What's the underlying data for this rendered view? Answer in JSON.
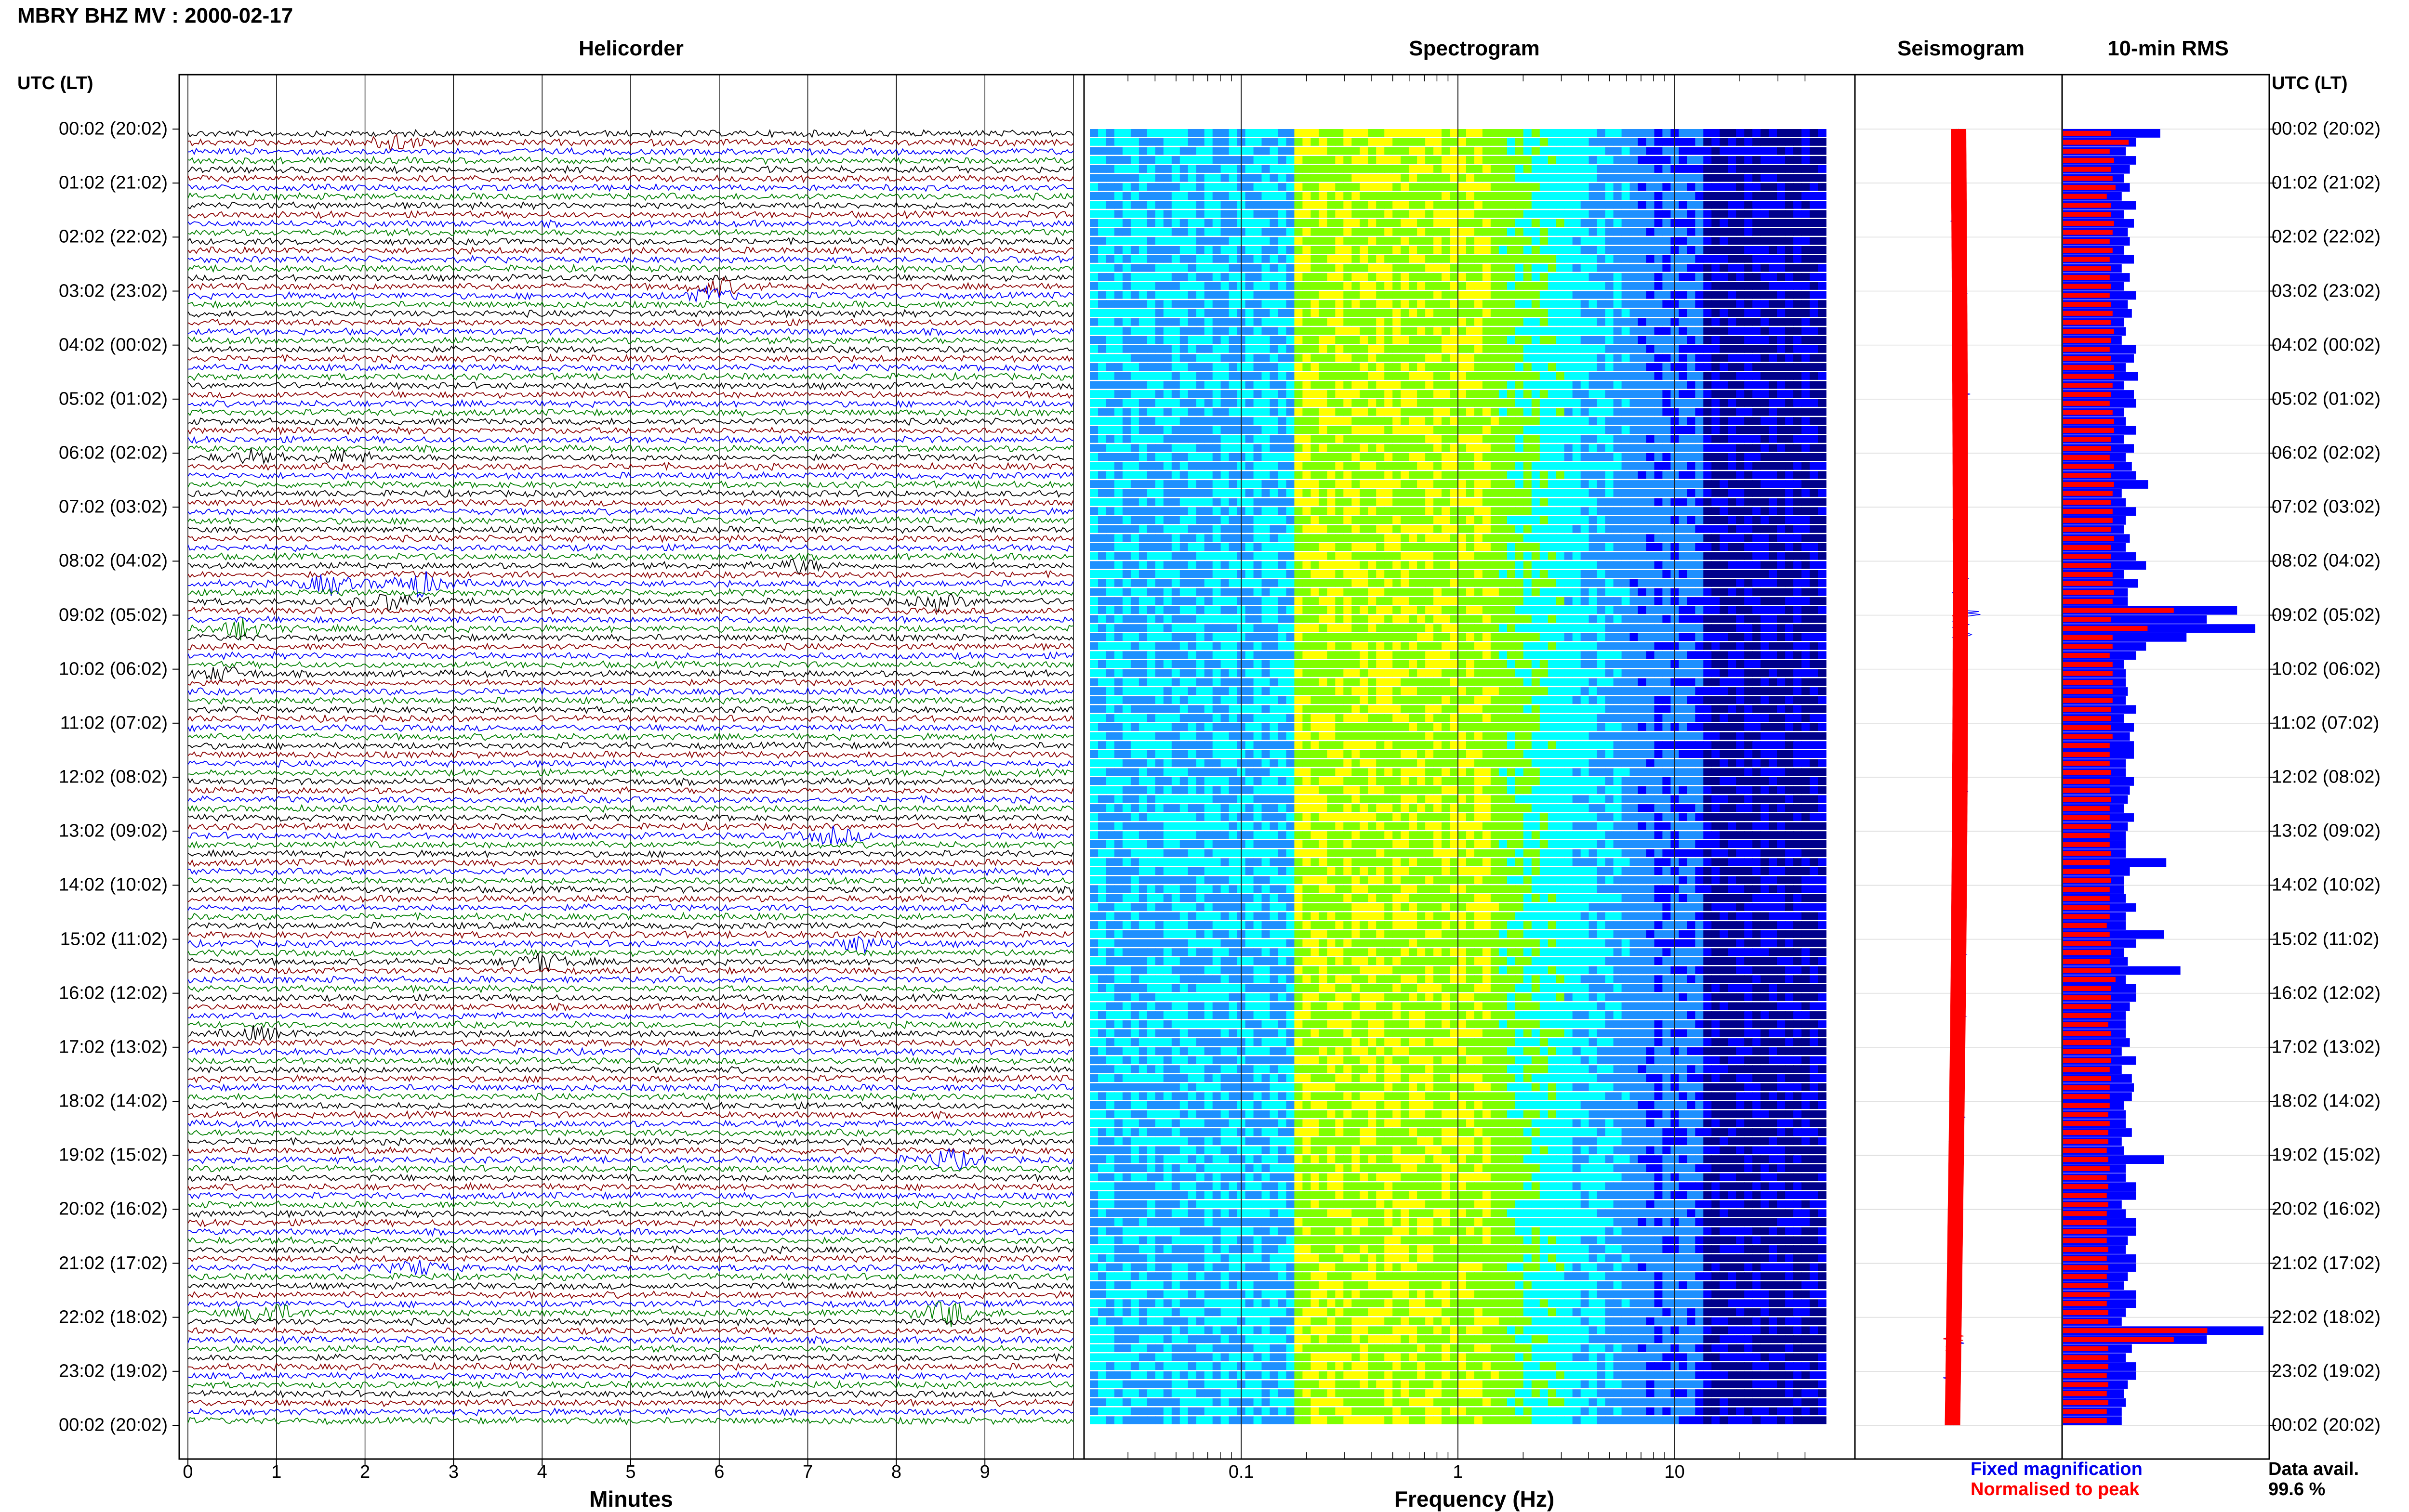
{
  "header": {
    "title": "MBRY BHZ MV : 2000-02-17"
  },
  "panels": {
    "helicorder": "Helicorder",
    "spectrogram": "Spectrogram",
    "seismogram": "Seismogram",
    "rms": "10-min RMS"
  },
  "axes": {
    "utc_label_left": "UTC (LT)",
    "utc_label_right": "UTC (LT)",
    "helicorder_xlabel": "Minutes",
    "spectrogram_xlabel": "Frequency (Hz)"
  },
  "time_labels": [
    "00:02 (20:02)",
    "01:02 (21:02)",
    "02:02 (22:02)",
    "03:02 (23:02)",
    "04:02 (00:02)",
    "05:02 (01:02)",
    "06:02 (02:02)",
    "07:02 (03:02)",
    "08:02 (04:02)",
    "09:02 (05:02)",
    "10:02 (06:02)",
    "11:02 (07:02)",
    "12:02 (08:02)",
    "13:02 (09:02)",
    "14:02 (10:02)",
    "15:02 (11:02)",
    "16:02 (12:02)",
    "17:02 (13:02)",
    "18:02 (14:02)",
    "19:02 (15:02)",
    "20:02 (16:02)",
    "21:02 (17:02)",
    "22:02 (18:02)",
    "23:02 (19:02)",
    "00:02 (20:02)"
  ],
  "legend": {
    "fixed_magnification": "Fixed magnification",
    "normalised_to_peak": "Normalised to peak",
    "data_avail_label": "Data avail.",
    "data_avail_value": "99.6 %"
  },
  "colors": {
    "trace_cycle": [
      "#000000",
      "#8b0000",
      "#0000ff",
      "#008000"
    ],
    "rms_fixed": "#0000ff",
    "rms_normalised": "#ff0000",
    "seismogram_fixed": "#0000ff",
    "seismogram_normalised": "#ff0000"
  },
  "chart_data": [
    {
      "type": "line",
      "title": "Helicorder",
      "xlabel": "Minutes",
      "xlim": [
        0,
        10
      ],
      "x_ticks": [
        0,
        1,
        2,
        3,
        4,
        5,
        6,
        7,
        8,
        9
      ],
      "rows": 144,
      "row_duration_minutes": 10,
      "events": [
        {
          "start_utc": "00:12",
          "minute": 2.3,
          "amplitude": 2.2
        },
        {
          "start_utc": "02:52",
          "minute": 6.0,
          "amplitude": 2.0
        },
        {
          "start_utc": "03:02",
          "minute": 5.9,
          "amplitude": 1.8
        },
        {
          "start_utc": "06:02",
          "minute": 0.7,
          "amplitude": 1.6
        },
        {
          "start_utc": "06:02",
          "minute": 1.8,
          "amplitude": 1.6
        },
        {
          "start_utc": "08:02",
          "minute": 6.9,
          "amplitude": 1.6
        },
        {
          "start_utc": "08:22",
          "minute": 1.6,
          "amplitude": 2.6
        },
        {
          "start_utc": "08:22",
          "minute": 2.6,
          "amplitude": 3.2
        },
        {
          "start_utc": "08:42",
          "minute": 2.3,
          "amplitude": 2.2
        },
        {
          "start_utc": "08:42",
          "minute": 8.5,
          "amplitude": 1.8
        },
        {
          "start_utc": "09:12",
          "minute": 0.6,
          "amplitude": 2.4
        },
        {
          "start_utc": "10:02",
          "minute": 0.4,
          "amplitude": 1.8
        },
        {
          "start_utc": "13:02",
          "minute": 7.3,
          "amplitude": 2.2
        },
        {
          "start_utc": "15:02",
          "minute": 7.6,
          "amplitude": 2.0
        },
        {
          "start_utc": "15:22",
          "minute": 4.0,
          "amplitude": 2.2
        },
        {
          "start_utc": "16:42",
          "minute": 0.8,
          "amplitude": 1.6
        },
        {
          "start_utc": "19:02",
          "minute": 8.6,
          "amplitude": 2.6
        },
        {
          "start_utc": "21:02",
          "minute": 2.6,
          "amplitude": 1.8
        },
        {
          "start_utc": "21:52",
          "minute": 0.9,
          "amplitude": 3.2
        },
        {
          "start_utc": "21:52",
          "minute": 8.6,
          "amplitude": 3.4
        }
      ]
    },
    {
      "type": "heatmap",
      "title": "Spectrogram",
      "xlabel": "Frequency (Hz)",
      "x_scale": "log",
      "xlim": [
        0.02,
        50
      ],
      "x_ticks": [
        0.1,
        1,
        10
      ],
      "colormap": [
        "#00008b",
        "#0000ff",
        "#1e90ff",
        "#00ffff",
        "#7fff00",
        "#ffff00"
      ],
      "rows": 144
    },
    {
      "type": "line",
      "title": "Seismogram",
      "series": [
        {
          "name": "Fixed magnification",
          "color": "#0000ff"
        },
        {
          "name": "Normalised to peak",
          "color": "#ff0000"
        }
      ]
    },
    {
      "type": "bar",
      "title": "10-min RMS",
      "orientation": "horizontal",
      "categories_count": 144,
      "series": [
        {
          "name": "Fixed magnification",
          "values": [
            0.48,
            0.36,
            0.31,
            0.36,
            0.33,
            0.3,
            0.33,
            0.29,
            0.36,
            0.3,
            0.35,
            0.32,
            0.33,
            0.3,
            0.35,
            0.29,
            0.33,
            0.3,
            0.36,
            0.32,
            0.34,
            0.3,
            0.31,
            0.29,
            0.36,
            0.35,
            0.31,
            0.37,
            0.3,
            0.35,
            0.36,
            0.3,
            0.31,
            0.36,
            0.3,
            0.35,
            0.31,
            0.34,
            0.36,
            0.42,
            0.29,
            0.31,
            0.36,
            0.31,
            0.3,
            0.33,
            0.31,
            0.36,
            0.41,
            0.3,
            0.37,
            0.32,
            0.32,
            0.86,
            0.71,
            0.95,
            0.61,
            0.41,
            0.36,
            0.3,
            0.31,
            0.31,
            0.32,
            0.31,
            0.36,
            0.3,
            0.35,
            0.33,
            0.35,
            0.35,
            0.31,
            0.31,
            0.35,
            0.33,
            0.32,
            0.3,
            0.35,
            0.32,
            0.31,
            0.31,
            0.31,
            0.51,
            0.33,
            0.3,
            0.3,
            0.31,
            0.36,
            0.31,
            0.31,
            0.5,
            0.36,
            0.3,
            0.32,
            0.58,
            0.31,
            0.36,
            0.36,
            0.33,
            0.31,
            0.31,
            0.31,
            0.33,
            0.29,
            0.36,
            0.29,
            0.34,
            0.35,
            0.34,
            0.3,
            0.31,
            0.31,
            0.34,
            0.29,
            0.3,
            0.5,
            0.31,
            0.31,
            0.36,
            0.36,
            0.29,
            0.31,
            0.36,
            0.36,
            0.32,
            0.31,
            0.36,
            0.36,
            0.32,
            0.3,
            0.36,
            0.36,
            0.31,
            0.29,
            0.99,
            0.71,
            0.34,
            0.31,
            0.36,
            0.36,
            0.32,
            0.3,
            0.31,
            0.29,
            0.29
          ]
        },
        {
          "name": "Normalised to peak",
          "values": [
            0.33,
            0.45,
            0.32,
            0.35,
            0.33,
            0.34,
            0.36,
            0.3,
            0.33,
            0.33,
            0.35,
            0.34,
            0.32,
            0.34,
            0.32,
            0.33,
            0.32,
            0.33,
            0.32,
            0.33,
            0.34,
            0.33,
            0.35,
            0.33,
            0.32,
            0.33,
            0.35,
            0.35,
            0.34,
            0.33,
            0.32,
            0.34,
            0.35,
            0.35,
            0.33,
            0.33,
            0.32,
            0.35,
            0.33,
            0.35,
            0.34,
            0.33,
            0.34,
            0.34,
            0.33,
            0.35,
            0.33,
            0.33,
            0.33,
            0.34,
            0.34,
            0.35,
            0.34,
            0.76,
            0.33,
            0.58,
            0.34,
            0.34,
            0.32,
            0.34,
            0.34,
            0.34,
            0.34,
            0.34,
            0.33,
            0.33,
            0.33,
            0.34,
            0.32,
            0.32,
            0.32,
            0.33,
            0.32,
            0.32,
            0.33,
            0.32,
            0.32,
            0.33,
            0.32,
            0.32,
            0.33,
            0.32,
            0.32,
            0.33,
            0.32,
            0.32,
            0.32,
            0.32,
            0.3,
            0.32,
            0.33,
            0.33,
            0.32,
            0.33,
            0.36,
            0.33,
            0.33,
            0.33,
            0.33,
            0.31,
            0.33,
            0.33,
            0.33,
            0.33,
            0.32,
            0.33,
            0.32,
            0.32,
            0.32,
            0.31,
            0.32,
            0.31,
            0.31,
            0.3,
            0.31,
            0.32,
            0.3,
            0.31,
            0.3,
            0.31,
            0.3,
            0.3,
            0.3,
            0.3,
            0.31,
            0.3,
            0.31,
            0.3,
            0.31,
            0.32,
            0.3,
            0.31,
            0.31,
            0.99,
            0.76,
            0.31,
            0.31,
            0.31,
            0.3,
            0.31,
            0.3,
            0.31,
            0.3,
            0.3
          ]
        }
      ]
    }
  ]
}
